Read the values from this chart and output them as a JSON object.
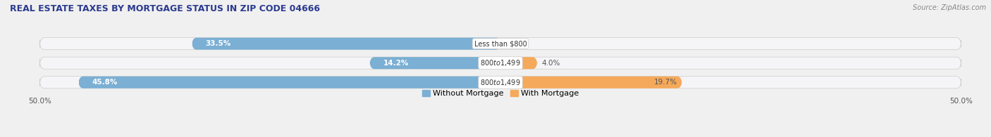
{
  "title": "REAL ESTATE TAXES BY MORTGAGE STATUS IN ZIP CODE 04666",
  "source": "Source: ZipAtlas.com",
  "rows": [
    {
      "label": "Less than $800",
      "without_mortgage": 33.5,
      "with_mortgage": 0.0
    },
    {
      "label": "$800 to $1,499",
      "without_mortgage": 14.2,
      "with_mortgage": 4.0
    },
    {
      "label": "$800 to $1,499",
      "without_mortgage": 45.8,
      "with_mortgage": 19.7
    }
  ],
  "x_min": -50.0,
  "x_max": 50.0,
  "x_tick_labels_left": "50.0%",
  "x_tick_labels_right": "50.0%",
  "color_without": "#7bafd4",
  "color_with": "#f5a95a",
  "bar_height": 0.62,
  "bg_color": "#f0f0f0",
  "bar_bg_color": "#e0e4ea",
  "legend_label_without": "Without Mortgage",
  "legend_label_with": "With Mortgage",
  "title_color": "#2b3a8f",
  "source_color": "#888888",
  "pct_color_inside": "#ffffff",
  "pct_color_outside": "#555555"
}
